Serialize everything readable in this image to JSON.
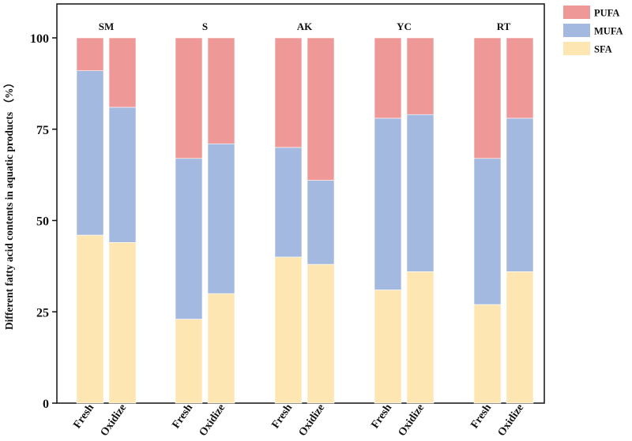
{
  "chart_data": {
    "type": "bar",
    "stacked": true,
    "ylabel": "Different fatty acid contents in aquatic products （%）",
    "xlabel": "",
    "ylim": [
      0,
      110
    ],
    "yticks": [
      0,
      25,
      50,
      75,
      100
    ],
    "grid": false,
    "legend_position": "outside-top-right",
    "group_labels": [
      "SM",
      "S",
      "AK",
      "YC",
      "RT"
    ],
    "bar_labels": [
      "Fresh",
      "Oxidize"
    ],
    "series": [
      {
        "name": "SFA",
        "color": "#fde6b1",
        "values": [
          46,
          44,
          23,
          30,
          40,
          38,
          31,
          36,
          27,
          36
        ]
      },
      {
        "name": "MUFA",
        "color": "#a4b9df",
        "values": [
          45,
          37,
          44,
          41,
          30,
          23,
          47,
          43,
          40,
          42
        ]
      },
      {
        "name": "PUFA",
        "color": "#ee9897",
        "values": [
          9,
          19,
          33,
          29,
          30,
          39,
          22,
          21,
          33,
          22
        ]
      }
    ],
    "legend": [
      "PUFA",
      "MUFA",
      "SFA"
    ]
  }
}
